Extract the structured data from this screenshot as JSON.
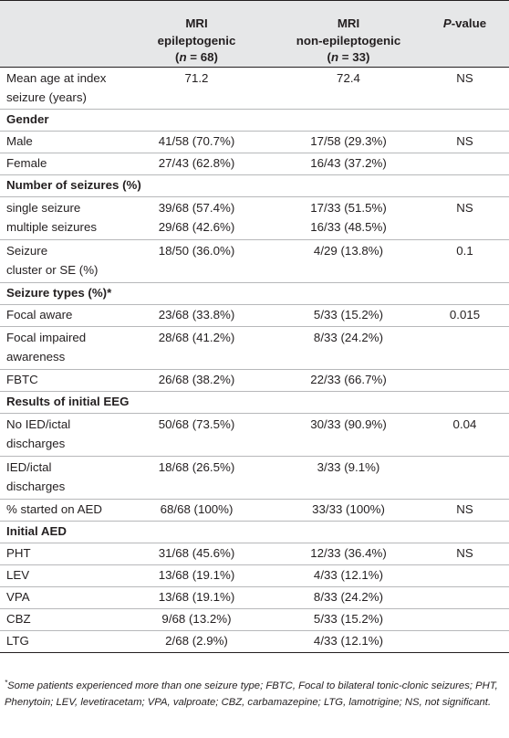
{
  "header": {
    "col1": "",
    "col2_line1": "MRI",
    "col2_line2": "epileptogenic",
    "col2_n_prefix": "(",
    "col2_n_var": "n",
    "col2_n_val": " = 68)",
    "col3_line1": "MRI",
    "col3_line2": "non-epileptogenic",
    "col3_n_prefix": "(",
    "col3_n_var": "n",
    "col3_n_val": " = 33)",
    "col4_var": "P",
    "col4_rest": "-value"
  },
  "rows": {
    "mean_age": {
      "l1": "Mean age at index",
      "l2": "seizure (years)",
      "a": "71.2",
      "b": "72.4",
      "p": "NS"
    },
    "gender": {
      "label": "Gender"
    },
    "male": {
      "label": "Male",
      "a": "41/58 (70.7%)",
      "b": "17/58 (29.3%)",
      "p": "NS"
    },
    "female": {
      "label": "Female",
      "a": "27/43 (62.8%)",
      "b": "16/43 (37.2%)",
      "p": ""
    },
    "num_seizures": {
      "label": "Number of seizures (%)"
    },
    "single_multi": {
      "l1": "single seizure",
      "l2": "multiple seizures",
      "a1": "39/68 (57.4%)",
      "a2": "29/68 (42.6%)",
      "b1": "17/33 (51.5%)",
      "b2": "16/33 (48.5%)",
      "p": "NS"
    },
    "cluster": {
      "l1": "Seizure",
      "l2": "cluster or SE (%)",
      "a": "18/50 (36.0%)",
      "b": "4/29 (13.8%)",
      "p": "0.1"
    },
    "seizure_types": {
      "label": "Seizure types (%)*"
    },
    "focal_aware": {
      "label": "Focal aware",
      "a": "23/68 (33.8%)",
      "b": "5/33 (15.2%)",
      "p": "0.015"
    },
    "focal_impaired": {
      "l1": "Focal impaired",
      "l2": "awareness",
      "a": "28/68 (41.2%)",
      "b": "8/33 (24.2%)",
      "p": ""
    },
    "fbtc": {
      "label": "FBTC",
      "a": "26/68 (38.2%)",
      "b": "22/33 (66.7%)",
      "p": ""
    },
    "initial_eeg": {
      "label": "Results of initial EEG"
    },
    "no_ied": {
      "l1": "No IED/ictal",
      "l2": "discharges",
      "a": "50/68 (73.5%)",
      "b": "30/33 (90.9%)",
      "p": "0.04"
    },
    "ied": {
      "l1": "IED/ictal",
      "l2": "discharges",
      "a": "18/68 (26.5%)",
      "b": "3/33 (9.1%)",
      "p": ""
    },
    "started_aed": {
      "label": "% started on AED",
      "a": "68/68 (100%)",
      "b": "33/33 (100%)",
      "p": "NS"
    },
    "initial_aed": {
      "label": "Initial AED"
    },
    "pht": {
      "label": "PHT",
      "a": "31/68 (45.6%)",
      "b": "12/33 (36.4%)",
      "p": "NS"
    },
    "lev": {
      "label": "LEV",
      "a": "13/68 (19.1%)",
      "b": "4/33 (12.1%)",
      "p": ""
    },
    "vpa": {
      "label": "VPA",
      "a": "13/68 (19.1%)",
      "b": "8/33 (24.2%)",
      "p": ""
    },
    "cbz": {
      "label": "CBZ",
      "a": "9/68 (13.2%)",
      "b": "5/33 (15.2%)",
      "p": ""
    },
    "ltg": {
      "label": "LTG",
      "a": "2/68 (2.9%)",
      "b": "4/33 (12.1%)",
      "p": ""
    }
  },
  "footnote": {
    "marker": "*",
    "text": "Some patients experienced more than one seizure type; FBTC, Focal to bilateral tonic-clonic seizures; PHT, Phenytoin; LEV, levetiracetam; VPA, valproate; CBZ, carbamazepine; LTG, lamotrigine; NS, not significant."
  }
}
